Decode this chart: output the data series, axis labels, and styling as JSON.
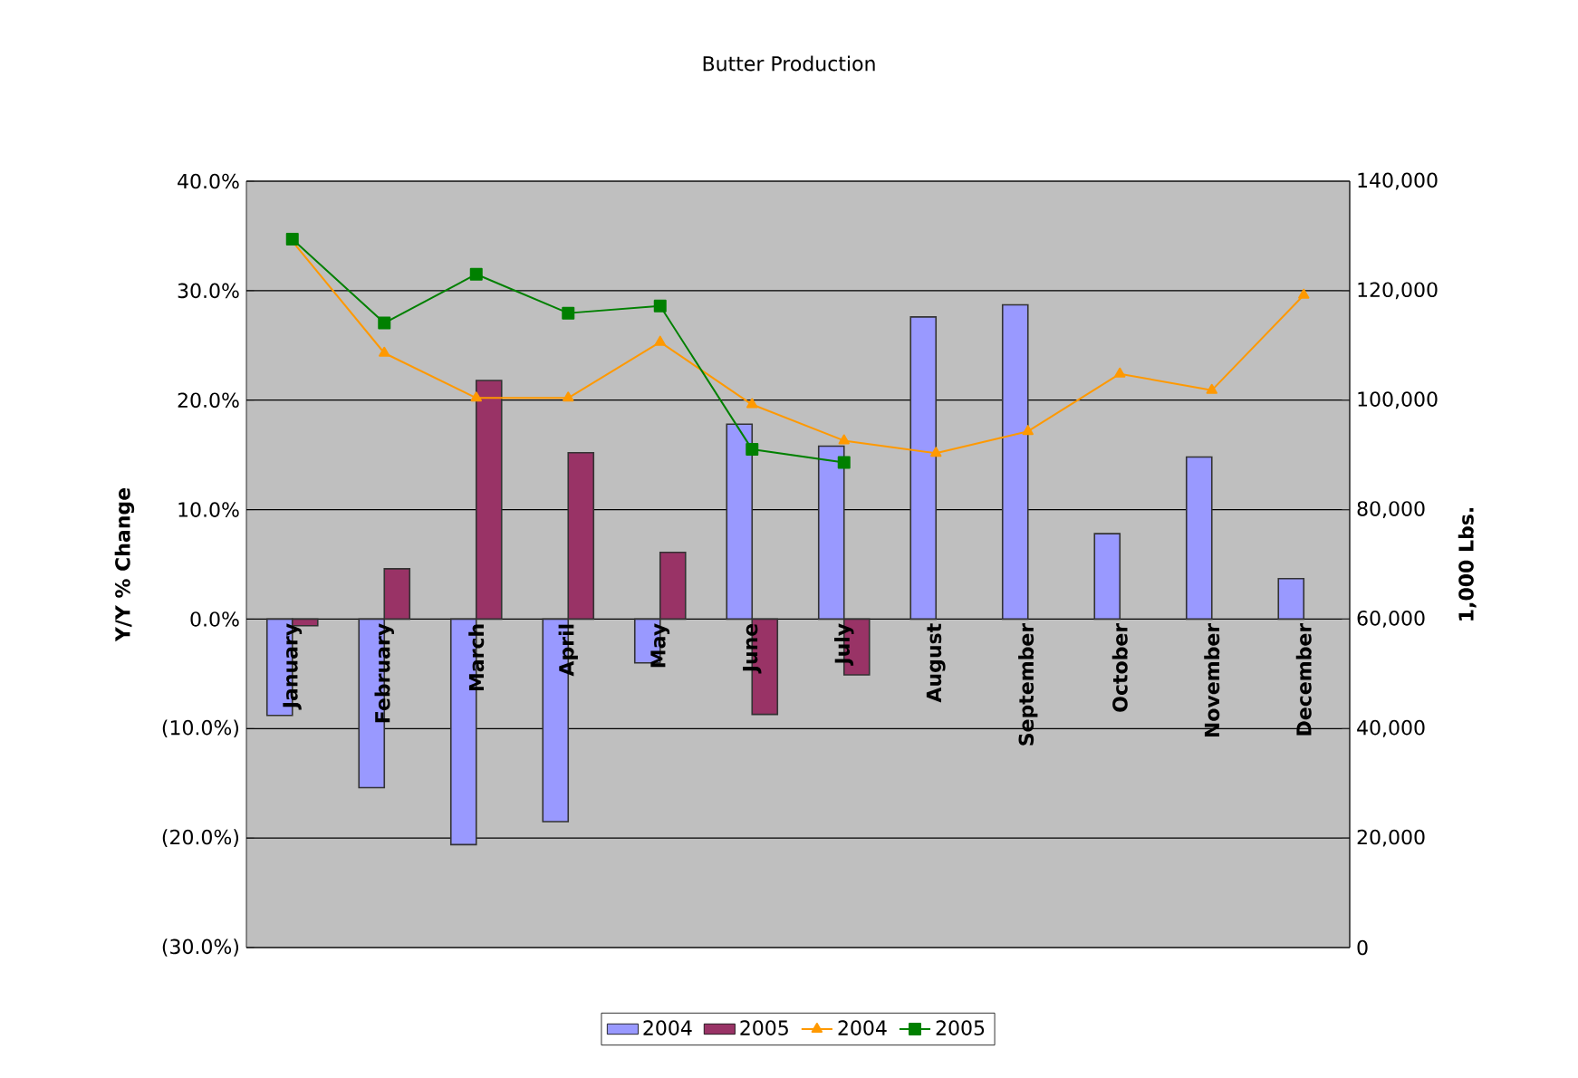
{
  "chart_data": {
    "type": "bar",
    "title": "Butter Production",
    "ylabel": "Y/Y % Change",
    "y2label": "1,000 Lbs.",
    "categories": [
      "January",
      "February",
      "March",
      "April",
      "May",
      "June",
      "July",
      "August",
      "September",
      "October",
      "November",
      "December"
    ],
    "series": [
      {
        "name": "2004",
        "color": "#9999ff",
        "values": [
          -8.8,
          -15.4,
          -20.6,
          -18.5,
          -4.0,
          17.8,
          15.8,
          27.6,
          28.7,
          7.8,
          14.8,
          3.7
        ]
      },
      {
        "name": "2005",
        "color": "#993366",
        "values": [
          -0.6,
          4.6,
          21.8,
          15.2,
          6.1,
          -8.7,
          -5.1,
          null,
          null,
          null,
          null,
          null
        ]
      },
      {
        "name": "2004",
        "type": "line",
        "axis": "y2",
        "color": "#ff9900",
        "marker": "triangle",
        "values": [
          129000,
          108600,
          100400,
          100400,
          110600,
          99200,
          92600,
          90300,
          94300,
          104800,
          101800,
          119200
        ]
      },
      {
        "name": "2005",
        "type": "line",
        "axis": "y2",
        "color": "#008000",
        "marker": "square",
        "values": [
          129400,
          114100,
          123000,
          115900,
          117200,
          91000,
          88600,
          null,
          null,
          null,
          null,
          null
        ]
      }
    ],
    "ylim": [
      -30,
      40
    ],
    "yticks": [
      {
        "value": -30,
        "label": "(30.0%)"
      },
      {
        "value": -20,
        "label": "(20.0%)"
      },
      {
        "value": -10,
        "label": "(10.0%)"
      },
      {
        "value": 0,
        "label": "0.0%"
      },
      {
        "value": 10,
        "label": "10.0%"
      },
      {
        "value": 20,
        "label": "20.0%"
      },
      {
        "value": 30,
        "label": "30.0%"
      },
      {
        "value": 40,
        "label": "40.0%"
      }
    ],
    "y2lim": [
      0,
      140000
    ],
    "y2ticks": [
      0,
      {
        "value": 20000,
        "label": "20,000"
      },
      {
        "value": 40000,
        "label": "40,000"
      },
      {
        "value": 60000,
        "label": "60,000"
      },
      {
        "value": 80000,
        "label": "80,000"
      },
      {
        "value": 100000,
        "label": "100,000"
      },
      {
        "value": 120000,
        "label": "120,000"
      },
      {
        "value": 140000,
        "label": "140,000"
      }
    ],
    "grid": "y",
    "legend": "bottom"
  }
}
